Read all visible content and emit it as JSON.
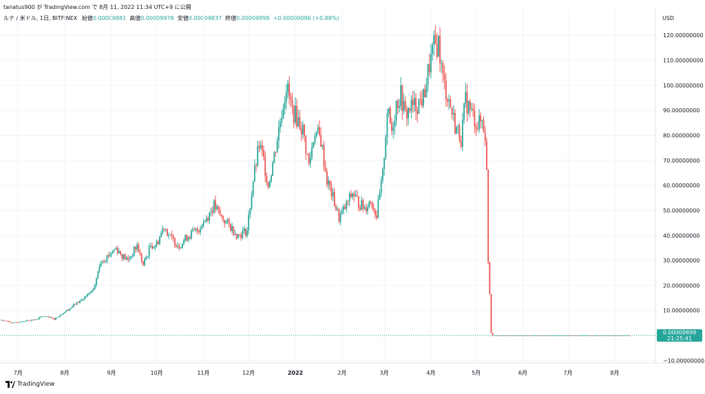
{
  "header": {
    "published_line": "tanatus900 が TradingView.com で 8月 11, 2022 11:34 UTC+9 に公開",
    "symbol": "ルナ / 米ドル, 1日, BITFINEX",
    "open_label": "始値",
    "open_value": "0.00009881",
    "high_label": "高値",
    "high_value": "0.00009978",
    "low_label": "安値",
    "low_value": "0.00009837",
    "close_label": "終値",
    "close_value": "0.00009899",
    "change": "+0.00000086 (+0.88%)"
  },
  "footer": {
    "brand": "TradingView",
    "logo_icon": "tradingview-logo-icon"
  },
  "colors": {
    "up": "#26a69a",
    "down": "#ef5350",
    "grid": "#f0f3fa",
    "price_label": "#26a69a"
  },
  "chart_data": {
    "type": "candlestick",
    "unit": "USD",
    "y_ticks": [
      "120.00000000",
      "110.00000000",
      "100.00000000",
      "90.00000000",
      "80.00000000",
      "70.00000000",
      "60.00000000",
      "50.00000000",
      "40.00000000",
      "30.00000000",
      "20.00000000",
      "10.00000000",
      "0.00000000",
      "−10.00000000"
    ],
    "y_tick_values": [
      120,
      110,
      100,
      90,
      80,
      70,
      60,
      50,
      40,
      30,
      20,
      10,
      0,
      -10
    ],
    "ylim": [
      -11,
      125
    ],
    "x_ticks": [
      {
        "label": "7月",
        "date": "2021-07-01"
      },
      {
        "label": "8月",
        "date": "2021-08-01"
      },
      {
        "label": "9月",
        "date": "2021-09-01"
      },
      {
        "label": "10月",
        "date": "2021-10-01"
      },
      {
        "label": "11月",
        "date": "2021-11-01"
      },
      {
        "label": "12月",
        "date": "2021-12-01"
      },
      {
        "label": "2022",
        "date": "2022-01-01",
        "bold": true
      },
      {
        "label": "2月",
        "date": "2022-02-01"
      },
      {
        "label": "3月",
        "date": "2022-03-01"
      },
      {
        "label": "4月",
        "date": "2022-04-01"
      },
      {
        "label": "5月",
        "date": "2022-05-01"
      },
      {
        "label": "6月",
        "date": "2022-06-01"
      },
      {
        "label": "7月",
        "date": "2022-07-01"
      },
      {
        "label": "8月",
        "date": "2022-08-01"
      }
    ],
    "last_price": "0.00009899",
    "countdown": "21:25:41",
    "close_path": [
      [
        "2021-06-20",
        6.2
      ],
      [
        "2021-06-28",
        5.0
      ],
      [
        "2021-07-05",
        5.8
      ],
      [
        "2021-07-12",
        6.3
      ],
      [
        "2021-07-18",
        7.7
      ],
      [
        "2021-07-25",
        6.6
      ],
      [
        "2021-08-01",
        9.5
      ],
      [
        "2021-08-08",
        12.5
      ],
      [
        "2021-08-15",
        15.5
      ],
      [
        "2021-08-20",
        18.0
      ],
      [
        "2021-08-25",
        30.0
      ],
      [
        "2021-08-28",
        31.0
      ],
      [
        "2021-09-04",
        35.0
      ],
      [
        "2021-09-08",
        32.0
      ],
      [
        "2021-09-12",
        30.0
      ],
      [
        "2021-09-18",
        36.0
      ],
      [
        "2021-09-22",
        28.0
      ],
      [
        "2021-09-27",
        36.0
      ],
      [
        "2021-10-01",
        36.5
      ],
      [
        "2021-10-06",
        44.0
      ],
      [
        "2021-10-10",
        39.0
      ],
      [
        "2021-10-16",
        36.0
      ],
      [
        "2021-10-22",
        40.0
      ],
      [
        "2021-10-28",
        42.0
      ],
      [
        "2021-11-03",
        47.0
      ],
      [
        "2021-11-08",
        52.0
      ],
      [
        "2021-11-12",
        48.0
      ],
      [
        "2021-11-18",
        44.0
      ],
      [
        "2021-11-24",
        40.0
      ],
      [
        "2021-11-30",
        42.0
      ],
      [
        "2021-12-04",
        62.0
      ],
      [
        "2021-12-08",
        76.0
      ],
      [
        "2021-12-11",
        70.0
      ],
      [
        "2021-12-14",
        60.0
      ],
      [
        "2021-12-18",
        72.0
      ],
      [
        "2021-12-22",
        86.0
      ],
      [
        "2021-12-26",
        100.0
      ],
      [
        "2021-12-30",
        90.0
      ],
      [
        "2022-01-03",
        86.0
      ],
      [
        "2022-01-06",
        82.0
      ],
      [
        "2022-01-10",
        68.0
      ],
      [
        "2022-01-14",
        82.0
      ],
      [
        "2022-01-18",
        78.0
      ],
      [
        "2022-01-22",
        62.0
      ],
      [
        "2022-01-26",
        55.0
      ],
      [
        "2022-01-30",
        47.0
      ],
      [
        "2022-02-03",
        51.0
      ],
      [
        "2022-02-08",
        57.0
      ],
      [
        "2022-02-12",
        53.0
      ],
      [
        "2022-02-16",
        51.0
      ],
      [
        "2022-02-20",
        54.0
      ],
      [
        "2022-02-24",
        48.0
      ],
      [
        "2022-02-28",
        64.0
      ],
      [
        "2022-03-03",
        90.0
      ],
      [
        "2022-03-06",
        82.0
      ],
      [
        "2022-03-09",
        93.0
      ],
      [
        "2022-03-12",
        96.0
      ],
      [
        "2022-03-15",
        88.0
      ],
      [
        "2022-03-18",
        91.0
      ],
      [
        "2022-03-22",
        92.0
      ],
      [
        "2022-03-27",
        95.0
      ],
      [
        "2022-03-31",
        108.0
      ],
      [
        "2022-04-03",
        115.0
      ],
      [
        "2022-04-06",
        117.0
      ],
      [
        "2022-04-09",
        102.0
      ],
      [
        "2022-04-13",
        94.0
      ],
      [
        "2022-04-17",
        84.0
      ],
      [
        "2022-04-21",
        79.0
      ],
      [
        "2022-04-24",
        94.0
      ],
      [
        "2022-04-28",
        89.0
      ],
      [
        "2022-05-02",
        84.0
      ],
      [
        "2022-05-05",
        86.0
      ],
      [
        "2022-05-07",
        80.0
      ],
      [
        "2022-05-08",
        65.0
      ],
      [
        "2022-05-09",
        30.0
      ],
      [
        "2022-05-10",
        17.0
      ],
      [
        "2022-05-11",
        1.0
      ],
      [
        "2022-05-12",
        0.0001
      ],
      [
        "2022-08-11",
        0.0001
      ]
    ]
  }
}
